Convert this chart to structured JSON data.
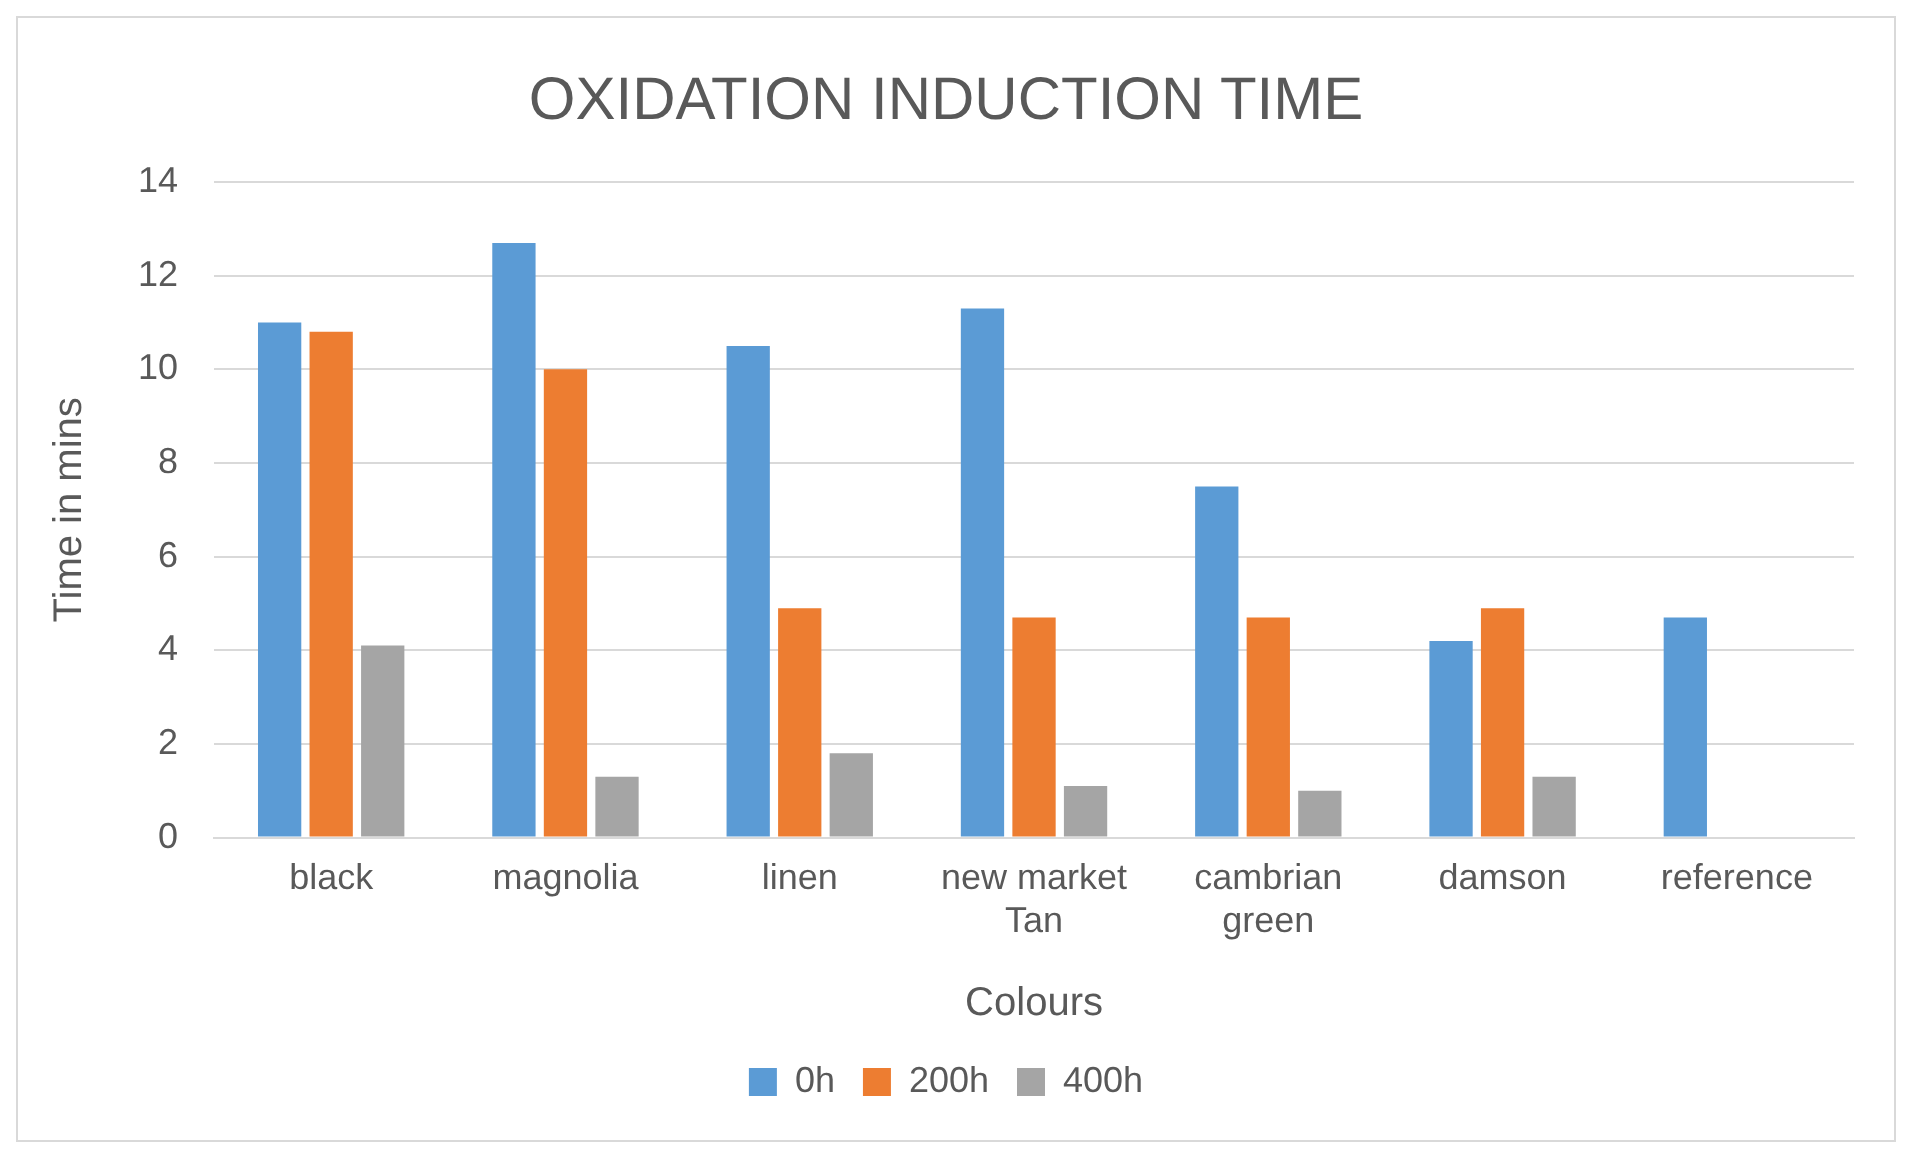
{
  "chart_data": {
    "type": "bar",
    "title": "OXIDATION INDUCTION TIME",
    "xlabel": "Colours",
    "ylabel": "Time in mins",
    "categories": [
      "black",
      "magnolia",
      "linen",
      "new market Tan",
      "cambrian green",
      "damson",
      "reference"
    ],
    "series": [
      {
        "name": "0h",
        "color": "#5b9bd5",
        "values": [
          11.0,
          12.7,
          10.5,
          11.3,
          7.5,
          4.2,
          4.7
        ]
      },
      {
        "name": "200h",
        "color": "#ed7d31",
        "values": [
          10.8,
          10.0,
          4.9,
          4.7,
          4.7,
          4.9,
          null
        ]
      },
      {
        "name": "400h",
        "color": "#a5a5a5",
        "values": [
          4.1,
          1.3,
          1.8,
          1.1,
          1.0,
          1.3,
          null
        ]
      }
    ],
    "ylim": [
      0,
      14
    ],
    "yticks": [
      0,
      2,
      4,
      6,
      8,
      10,
      12,
      14
    ],
    "grid": "y",
    "legend": "bottom"
  }
}
